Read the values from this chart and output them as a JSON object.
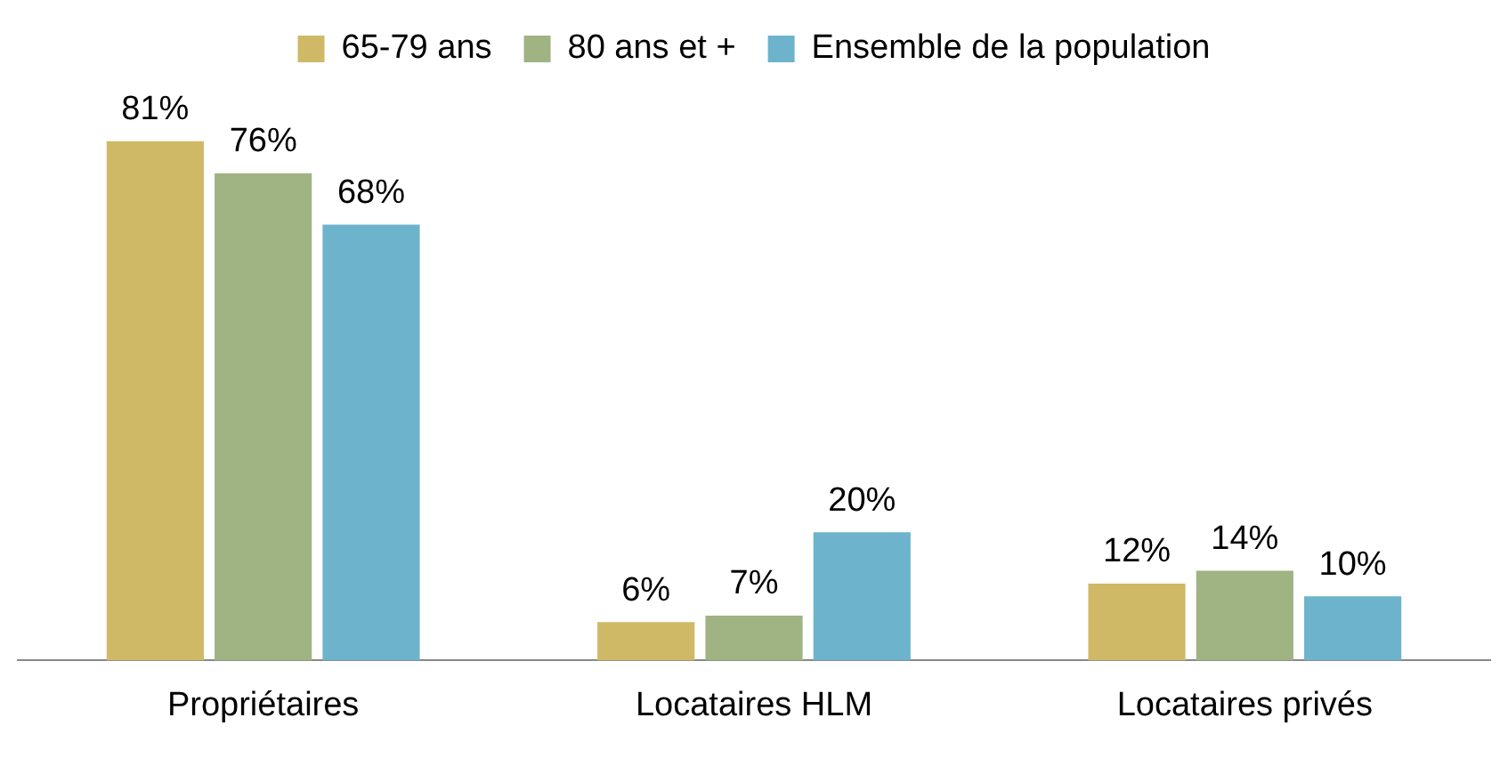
{
  "chart_data": {
    "type": "bar",
    "categories": [
      "Propriétaires",
      "Locataires HLM",
      "Locataires privés"
    ],
    "series": [
      {
        "name": "65-79 ans",
        "color": "#cfb966",
        "values": [
          81,
          6,
          12
        ],
        "value_labels": [
          "81%",
          "6%",
          "12%"
        ]
      },
      {
        "name": "80 ans et +",
        "color": "#9fb383",
        "values": [
          76,
          7,
          14
        ],
        "value_labels": [
          "76%",
          "7%",
          "14%"
        ]
      },
      {
        "name": "Ensemble de la population",
        "color": "#6db3cb",
        "values": [
          68,
          20,
          10
        ],
        "value_labels": [
          "68%",
          "20%",
          "10%"
        ]
      }
    ],
    "legend": "top",
    "grid": false
  }
}
